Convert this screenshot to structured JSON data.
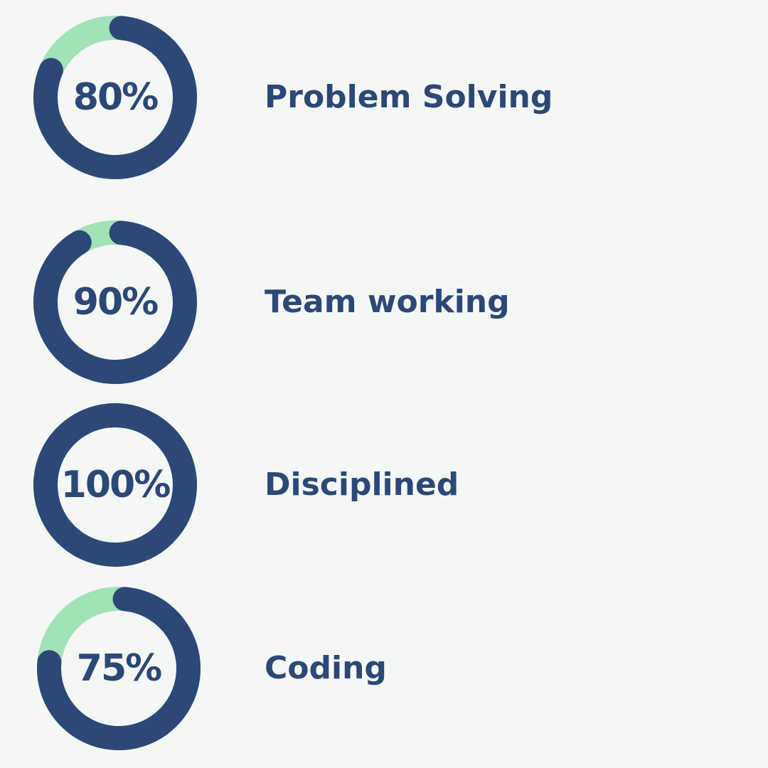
{
  "colors": {
    "background": "#f5f7f5",
    "ring_filled": "#2b4876",
    "ring_track": "#a1e2b8",
    "text": "#2b4876"
  },
  "chart_data": {
    "type": "donut",
    "title": "",
    "unit": "%",
    "max": 100,
    "categories": [
      "Problem Solving",
      "Team working",
      "Disciplined",
      "Coding"
    ],
    "values": [
      80,
      90,
      100,
      75
    ]
  },
  "skills": [
    {
      "label": "Problem Solving",
      "percent_label": "80%",
      "value": 80
    },
    {
      "label": "Team working",
      "percent_label": "90%",
      "value": 90
    },
    {
      "label": "Disciplined",
      "percent_label": "100%",
      "value": 100
    },
    {
      "label": "Coding",
      "percent_label": "75%",
      "value": 75
    }
  ]
}
